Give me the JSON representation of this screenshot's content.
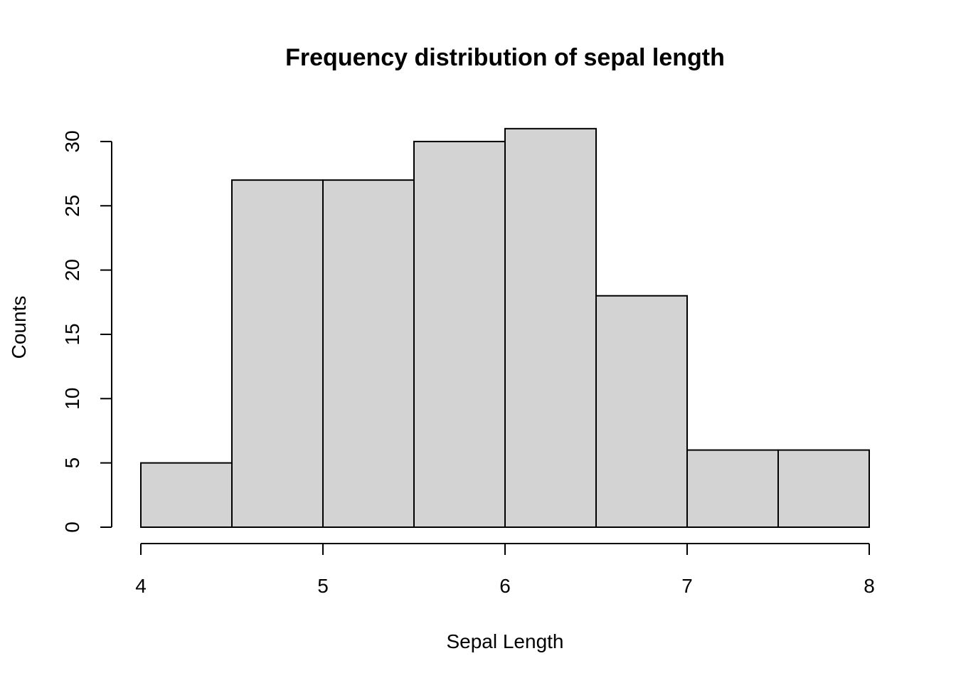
{
  "chart_data": {
    "type": "bar",
    "subtype": "histogram",
    "title": "Frequency distribution of sepal length",
    "xlabel": "Sepal Length",
    "ylabel": "Counts",
    "bin_edges": [
      4.0,
      4.5,
      5.0,
      5.5,
      6.0,
      6.5,
      7.0,
      7.5,
      8.0
    ],
    "values": [
      5,
      27,
      27,
      30,
      31,
      18,
      6,
      6
    ],
    "xlim": [
      4,
      8
    ],
    "ylim": [
      0,
      31
    ],
    "xticks": [
      4,
      5,
      6,
      7,
      8
    ],
    "yticks": [
      0,
      5,
      10,
      15,
      20,
      25,
      30
    ],
    "bar_color": "#d3d3d3",
    "edge_color": "#000000",
    "grid": false
  }
}
